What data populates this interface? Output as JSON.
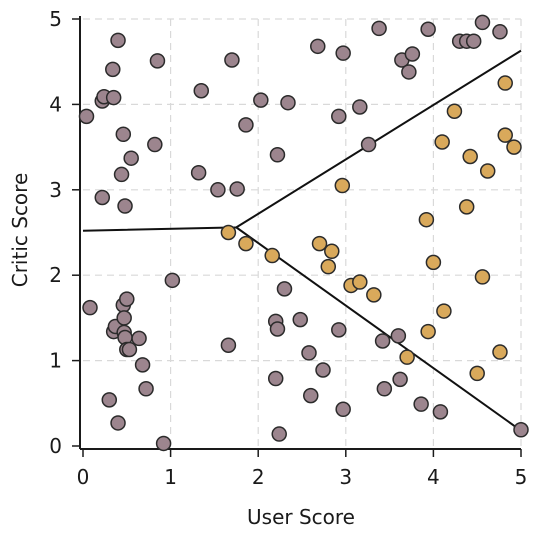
{
  "chart_data": {
    "type": "scatter",
    "xlabel": "User Score",
    "ylabel": "Critic Score",
    "xlim": [
      0,
      5
    ],
    "ylim": [
      0,
      5
    ],
    "xticks": [
      "0",
      "1",
      "2",
      "3",
      "4",
      "5"
    ],
    "yticks": [
      "0",
      "1",
      "2",
      "3",
      "4",
      "5"
    ],
    "grid": true,
    "colors": {
      "class_a": "#9c858e",
      "class_b": "#d9a95b",
      "boundary": "#111111"
    },
    "decision_boundary": [
      [
        0,
        2.52
      ],
      [
        1.75,
        2.56
      ],
      [
        5,
        4.63
      ],
      [
        1.75,
        2.56
      ],
      [
        5,
        0.18
      ]
    ],
    "series": [
      {
        "key": "class_a",
        "points": [
          [
            0.04,
            3.86
          ],
          [
            0.08,
            1.62
          ],
          [
            0.22,
            4.04
          ],
          [
            0.22,
            2.91
          ],
          [
            0.24,
            4.09
          ],
          [
            0.3,
            0.54
          ],
          [
            0.35,
            4.08
          ],
          [
            0.34,
            4.41
          ],
          [
            0.35,
            1.34
          ],
          [
            0.37,
            1.4
          ],
          [
            0.4,
            4.75
          ],
          [
            0.4,
            0.27
          ],
          [
            0.44,
            3.18
          ],
          [
            0.46,
            3.65
          ],
          [
            0.46,
            1.65
          ],
          [
            0.47,
            1.5
          ],
          [
            0.47,
            1.33
          ],
          [
            0.48,
            2.81
          ],
          [
            0.48,
            1.27
          ],
          [
            0.5,
            1.72
          ],
          [
            0.5,
            1.13
          ],
          [
            0.53,
            1.13
          ],
          [
            0.55,
            3.37
          ],
          [
            0.64,
            1.26
          ],
          [
            0.68,
            0.95
          ],
          [
            0.72,
            0.67
          ],
          [
            0.82,
            3.53
          ],
          [
            0.85,
            4.51
          ],
          [
            0.92,
            0.03
          ],
          [
            1.02,
            1.94
          ],
          [
            1.32,
            3.2
          ],
          [
            1.35,
            4.16
          ],
          [
            1.54,
            3.0
          ],
          [
            1.66,
            1.18
          ],
          [
            1.7,
            4.52
          ],
          [
            1.76,
            3.01
          ],
          [
            1.86,
            3.76
          ],
          [
            2.03,
            4.05
          ],
          [
            2.2,
            1.46
          ],
          [
            2.2,
            0.79
          ],
          [
            2.22,
            3.41
          ],
          [
            2.22,
            1.37
          ],
          [
            2.24,
            0.14
          ],
          [
            2.3,
            1.84
          ],
          [
            2.34,
            4.02
          ],
          [
            2.48,
            1.48
          ],
          [
            2.58,
            1.09
          ],
          [
            2.6,
            0.59
          ],
          [
            2.68,
            4.68
          ],
          [
            2.74,
            0.89
          ],
          [
            2.92,
            1.36
          ],
          [
            2.92,
            3.86
          ],
          [
            2.97,
            4.6
          ],
          [
            2.97,
            0.43
          ],
          [
            3.16,
            3.97
          ],
          [
            3.26,
            3.53
          ],
          [
            3.38,
            4.89
          ],
          [
            3.42,
            1.23
          ],
          [
            3.44,
            0.67
          ],
          [
            3.6,
            1.29
          ],
          [
            3.62,
            0.78
          ],
          [
            3.64,
            4.52
          ],
          [
            3.72,
            4.38
          ],
          [
            3.76,
            4.59
          ],
          [
            3.86,
            0.49
          ],
          [
            3.94,
            4.88
          ],
          [
            4.08,
            0.4
          ],
          [
            4.3,
            4.74
          ],
          [
            4.38,
            4.74
          ],
          [
            4.46,
            4.74
          ],
          [
            4.56,
            4.96
          ],
          [
            4.76,
            4.85
          ],
          [
            5.0,
            0.19
          ]
        ]
      },
      {
        "key": "class_b",
        "points": [
          [
            1.66,
            2.5
          ],
          [
            1.86,
            2.37
          ],
          [
            2.16,
            2.23
          ],
          [
            2.7,
            2.37
          ],
          [
            2.8,
            2.1
          ],
          [
            2.84,
            2.28
          ],
          [
            2.96,
            3.05
          ],
          [
            3.06,
            1.88
          ],
          [
            3.16,
            1.92
          ],
          [
            3.32,
            1.77
          ],
          [
            3.7,
            1.04
          ],
          [
            3.92,
            2.65
          ],
          [
            3.94,
            1.34
          ],
          [
            4.0,
            2.15
          ],
          [
            4.1,
            3.56
          ],
          [
            4.12,
            1.58
          ],
          [
            4.24,
            3.92
          ],
          [
            4.38,
            2.8
          ],
          [
            4.42,
            3.39
          ],
          [
            4.5,
            0.85
          ],
          [
            4.56,
            1.98
          ],
          [
            4.62,
            3.22
          ],
          [
            4.76,
            1.1
          ],
          [
            4.82,
            4.25
          ],
          [
            4.82,
            3.64
          ],
          [
            4.92,
            3.5
          ]
        ]
      }
    ]
  }
}
